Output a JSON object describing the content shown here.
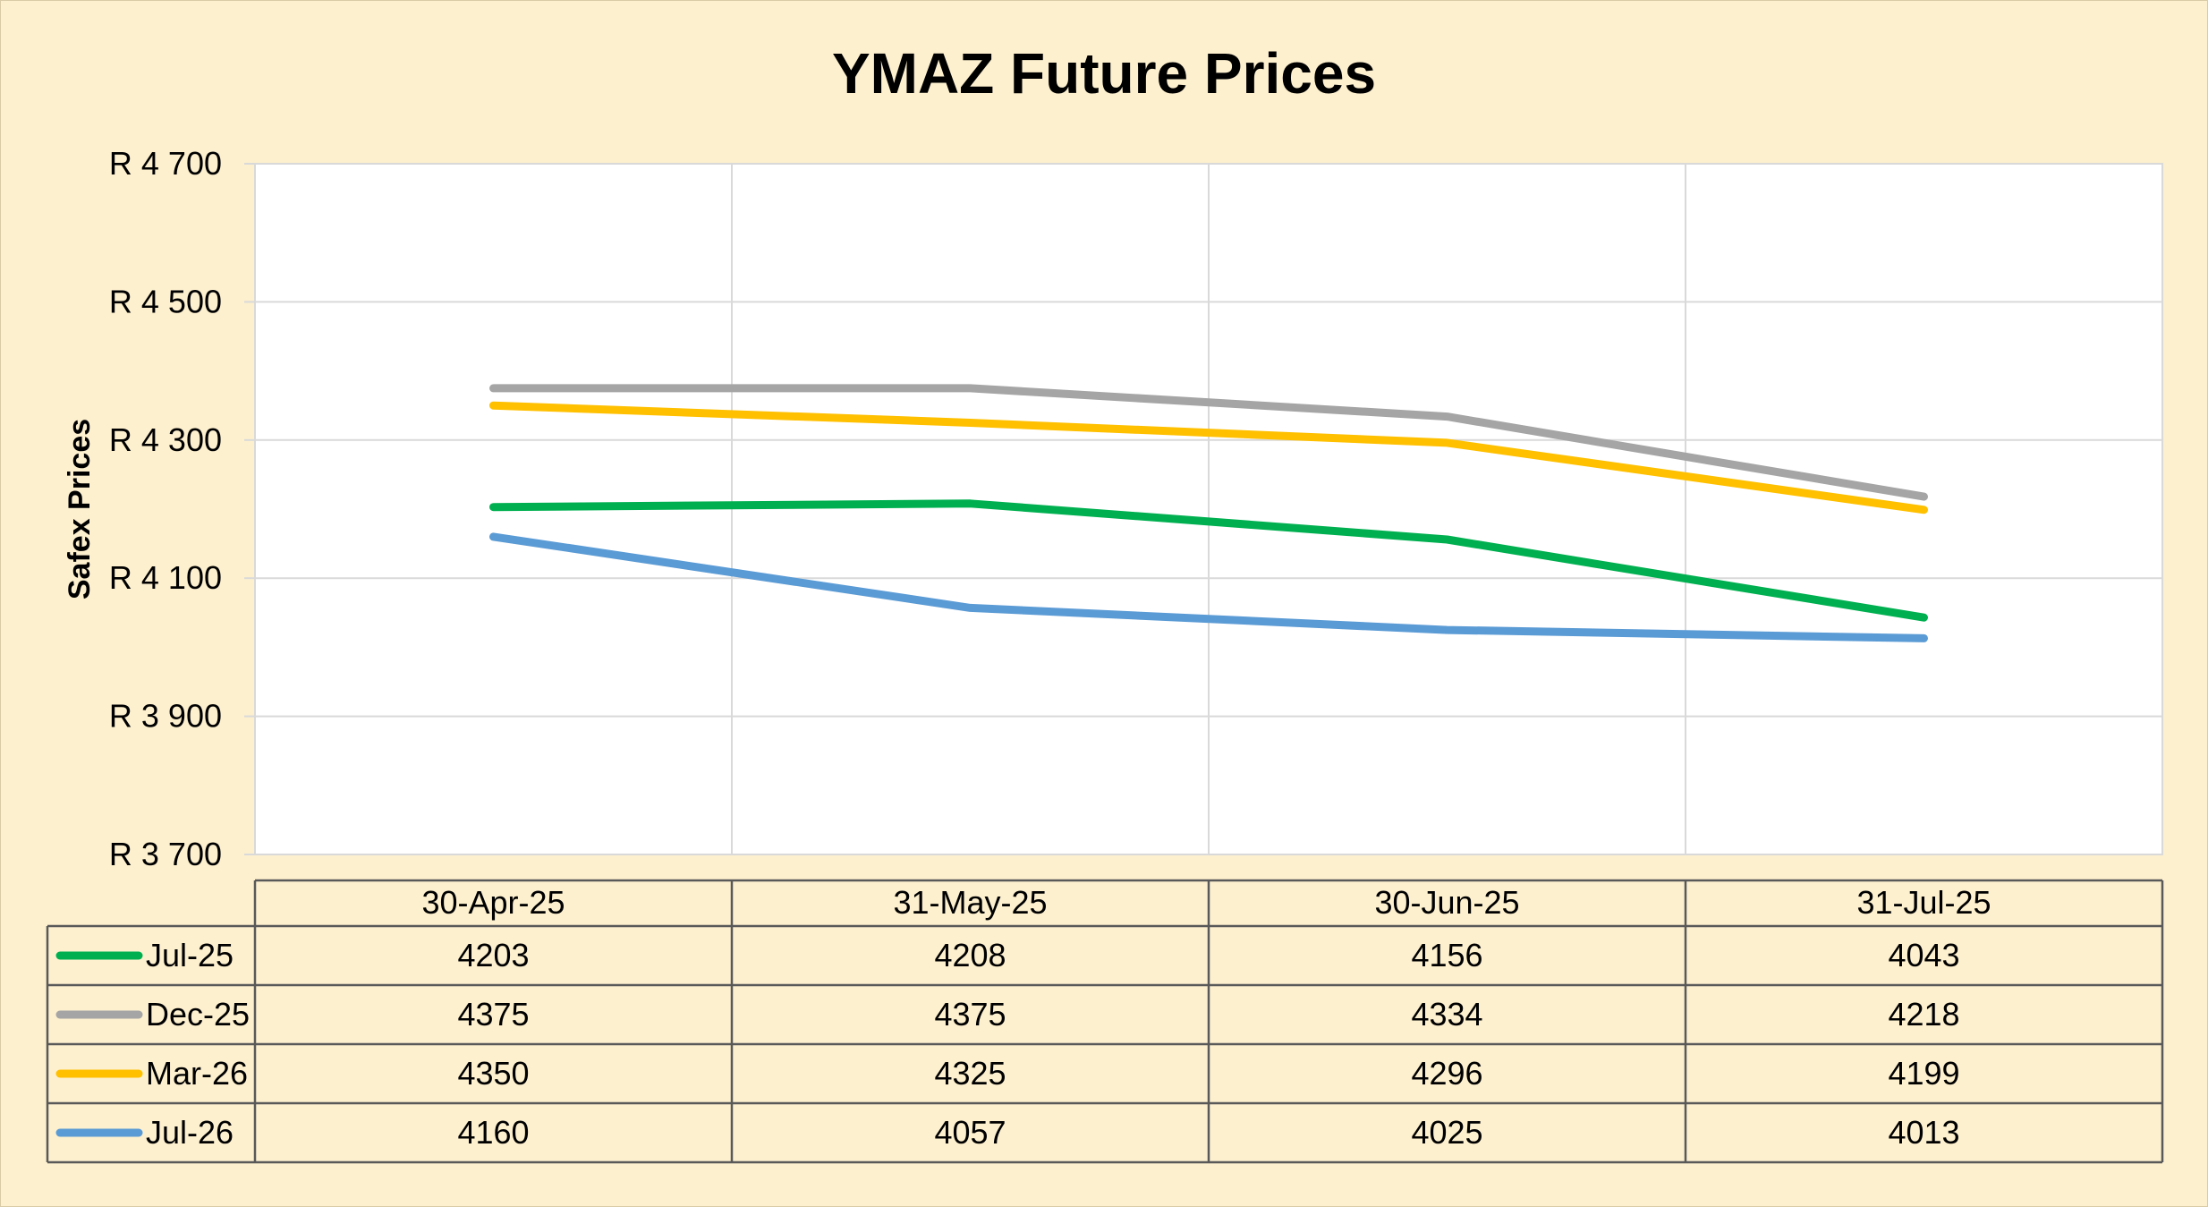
{
  "chart_data": {
    "type": "line",
    "title": "YMAZ Future Prices",
    "ylabel": "Safex Prices",
    "xlabel": "",
    "categories": [
      "30-Apr-25",
      "31-May-25",
      "30-Jun-25",
      "31-Jul-25"
    ],
    "ylim": [
      3700,
      4700
    ],
    "yticks": [
      3700,
      3900,
      4100,
      4300,
      4500,
      4700
    ],
    "ytick_labels": [
      "R 3 700",
      "R 3 900",
      "R 4 100",
      "R 4 300",
      "R 4 500",
      "R 4 700"
    ],
    "grid": true,
    "legend": "data-table",
    "series": [
      {
        "name": "Jul-25",
        "color": "#00b050",
        "values": [
          4203,
          4208,
          4156,
          4043
        ],
        "labels": [
          "4203",
          "4208",
          "4156",
          "4043"
        ]
      },
      {
        "name": "Dec-25",
        "color": "#a5a5a5",
        "values": [
          4375,
          4375,
          4334,
          4218
        ],
        "labels": [
          "4375",
          "4375",
          "4334",
          "4218"
        ]
      },
      {
        "name": "Mar-26",
        "color": "#ffc000",
        "values": [
          4350,
          4325,
          4296,
          4199
        ],
        "labels": [
          "4350",
          "4325",
          "4296",
          "4199"
        ]
      },
      {
        "name": "Jul-26",
        "color": "#5b9bd5",
        "values": [
          4160,
          4057,
          4025,
          4013
        ],
        "labels": [
          "4160",
          "4057",
          "4025",
          "4013"
        ]
      }
    ]
  },
  "colors": {
    "background": "#fdf0cf",
    "plot_background": "#ffffff",
    "gridline": "#d9d9d9",
    "table_border": "#595959"
  }
}
